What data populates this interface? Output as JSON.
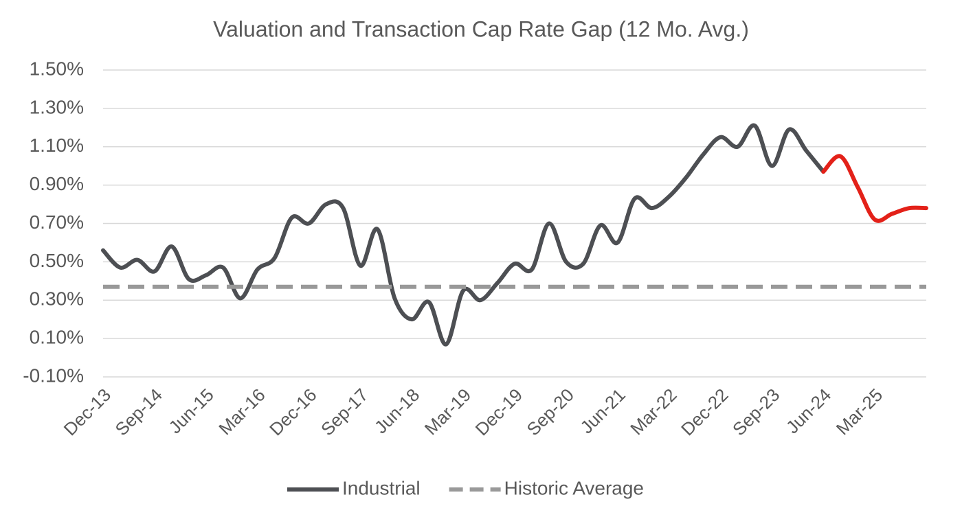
{
  "chart_data": {
    "type": "line",
    "title": "Valuation and Transaction Cap Rate Gap (12 Mo. Avg.)",
    "categories": [
      "Dec-13",
      null,
      null,
      "Sep-14",
      null,
      null,
      "Jun-15",
      null,
      null,
      "Mar-16",
      null,
      null,
      "Dec-16",
      null,
      null,
      "Sep-17",
      null,
      null,
      "Jun-18",
      null,
      null,
      "Mar-19",
      null,
      null,
      "Dec-19",
      null,
      null,
      "Sep-20",
      null,
      null,
      "Jun-21",
      null,
      null,
      "Mar-22",
      null,
      null,
      "Dec-22",
      null,
      null,
      "Sep-23",
      null,
      null,
      "Jun-24",
      null,
      null,
      "Mar-25",
      null,
      null,
      null
    ],
    "series": [
      {
        "name": "Industrial",
        "color": "#4d4f53",
        "highlight_from": "Jun-24",
        "highlight_color": "#e32119",
        "values": [
          0.56,
          0.47,
          0.51,
          0.45,
          0.58,
          0.41,
          0.43,
          0.47,
          0.31,
          0.46,
          0.52,
          0.73,
          0.7,
          0.8,
          0.78,
          0.48,
          0.67,
          0.31,
          0.2,
          0.29,
          0.07,
          0.35,
          0.3,
          0.39,
          0.49,
          0.46,
          0.7,
          0.5,
          0.49,
          0.69,
          0.6,
          0.83,
          0.78,
          0.84,
          0.94,
          1.06,
          1.15,
          1.1,
          1.21,
          1.0,
          1.19,
          1.08,
          0.97,
          1.05,
          0.89,
          0.72,
          0.75,
          0.78,
          0.78
        ]
      },
      {
        "name": "Historic Average",
        "color": "#999999",
        "dashed": true,
        "value": 0.37
      }
    ],
    "ylim": [
      -0.1,
      1.5
    ],
    "yticks": [
      {
        "value": -0.1,
        "label": "-0.10%"
      },
      {
        "value": 0.1,
        "label": "0.10%"
      },
      {
        "value": 0.3,
        "label": "0.30%"
      },
      {
        "value": 0.5,
        "label": "0.50%"
      },
      {
        "value": 0.7,
        "label": "0.70%"
      },
      {
        "value": 0.9,
        "label": "0.90%"
      },
      {
        "value": 1.1,
        "label": "1.10%"
      },
      {
        "value": 1.3,
        "label": "1.30%"
      },
      {
        "value": 1.5,
        "label": "1.50%"
      }
    ],
    "grid": true,
    "legend": "bottom"
  }
}
